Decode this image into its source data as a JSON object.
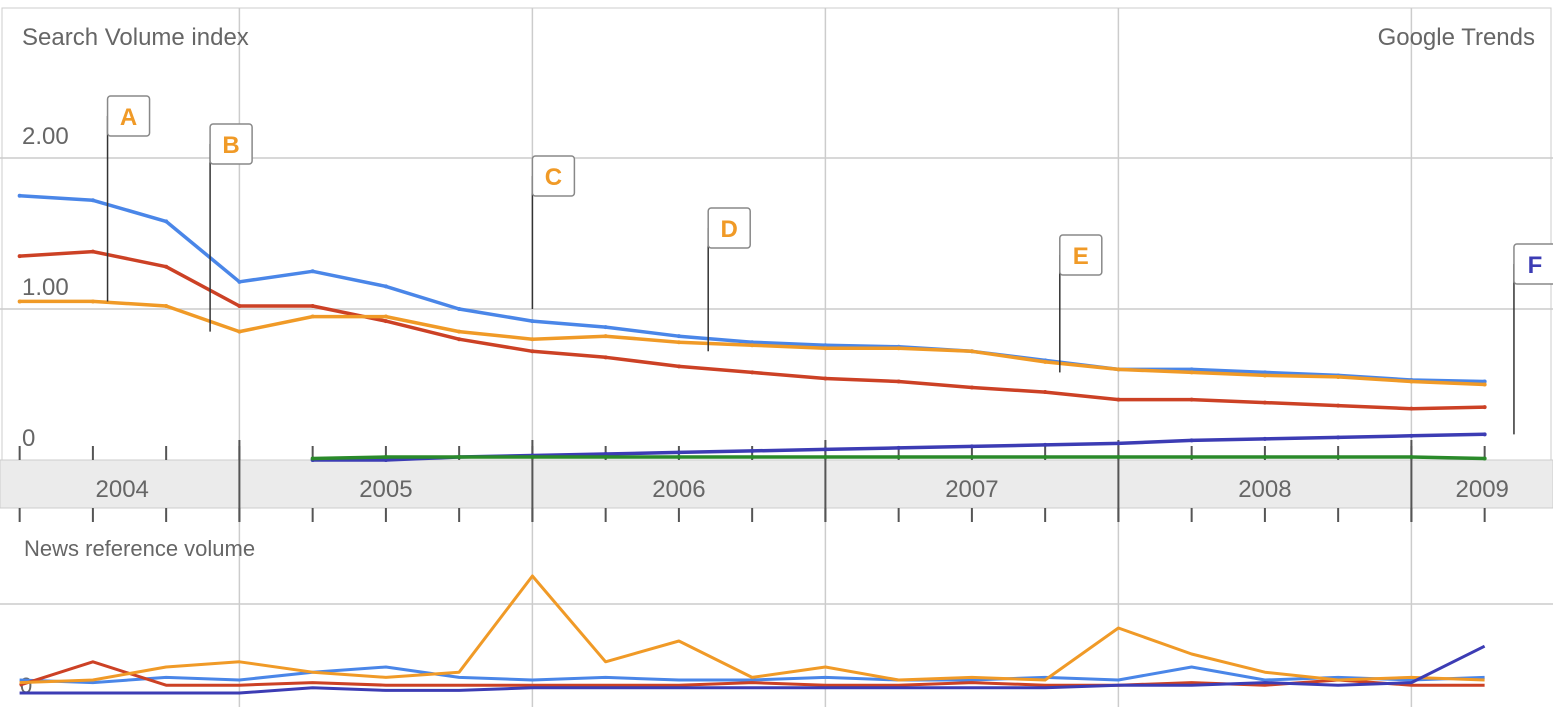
{
  "header": {
    "left_label": "Search Volume index",
    "right_label": "Google Trends"
  },
  "news_panel": {
    "label": "News reference volume",
    "zero_label": "0"
  },
  "colors": {
    "series1": "#4a86e8",
    "series2": "#cc4125",
    "series3": "#f09a27",
    "series4": "#3c3cb4",
    "series5": "#2a8a2a",
    "grid": "#cccccc",
    "band": "#ebebeb",
    "text": "#666666"
  },
  "chart_data": [
    {
      "type": "line",
      "title": "Search Volume index",
      "xlabel": "",
      "ylabel": "",
      "x_tick_labels": [
        "2004",
        "2005",
        "2006",
        "2007",
        "2008",
        "2009"
      ],
      "y_tick_labels": [
        "0",
        "1.00",
        "2.00"
      ],
      "ylim": [
        0,
        2.3
      ],
      "xlim": [
        2003.95,
        2009.25
      ],
      "grid": true,
      "x": [
        2004.0,
        2004.25,
        2004.5,
        2004.75,
        2005.0,
        2005.25,
        2005.5,
        2005.75,
        2006.0,
        2006.25,
        2006.5,
        2006.75,
        2007.0,
        2007.25,
        2007.5,
        2007.75,
        2008.0,
        2008.25,
        2008.5,
        2008.75,
        2009.0,
        2009.25
      ],
      "series": [
        {
          "values": [
            1.75,
            1.72,
            1.58,
            1.18,
            1.25,
            1.15,
            1.0,
            0.92,
            0.88,
            0.82,
            0.78,
            0.76,
            0.75,
            0.72,
            0.66,
            0.6,
            0.6,
            0.58,
            0.56,
            0.53,
            0.52,
            0.5
          ]
        },
        {
          "values": [
            1.35,
            1.38,
            1.28,
            1.02,
            1.02,
            0.92,
            0.8,
            0.72,
            0.68,
            0.62,
            0.58,
            0.54,
            0.52,
            0.48,
            0.45,
            0.4,
            0.4,
            0.38,
            0.36,
            0.34,
            0.35,
            0.34
          ]
        },
        {
          "values": [
            1.05,
            1.05,
            1.02,
            0.85,
            0.95,
            0.95,
            0.85,
            0.8,
            0.82,
            0.78,
            0.76,
            0.74,
            0.74,
            0.72,
            0.65,
            0.6,
            0.58,
            0.56,
            0.55,
            0.52,
            0.5,
            0.48
          ]
        },
        {
          "values": [
            null,
            null,
            null,
            null,
            0.0,
            0.0,
            0.02,
            0.03,
            0.04,
            0.05,
            0.06,
            0.07,
            0.08,
            0.09,
            0.1,
            0.11,
            0.13,
            0.14,
            0.15,
            0.16,
            0.17,
            0.17
          ]
        },
        {
          "values": [
            null,
            null,
            null,
            null,
            0.01,
            0.02,
            0.02,
            0.02,
            0.02,
            0.02,
            0.02,
            0.02,
            0.02,
            0.02,
            0.02,
            0.02,
            0.02,
            0.02,
            0.02,
            0.02,
            0.01,
            0.01
          ]
        }
      ],
      "annotations": [
        {
          "label": "A",
          "x": 2004.3,
          "y": 1.05,
          "color": "#f09a27"
        },
        {
          "label": "B",
          "x": 2004.65,
          "y": 0.85,
          "color": "#f09a27"
        },
        {
          "label": "C",
          "x": 2005.75,
          "y": 1.0,
          "color": "#f09a27"
        },
        {
          "label": "D",
          "x": 2006.35,
          "y": 0.72,
          "color": "#f09a27"
        },
        {
          "label": "E",
          "x": 2007.55,
          "y": 0.58,
          "color": "#f09a27"
        },
        {
          "label": "F",
          "x": 2009.1,
          "y": 0.17,
          "color": "#3c3cb4"
        }
      ]
    },
    {
      "type": "line",
      "title": "News reference volume",
      "y_tick_labels": [
        "0"
      ],
      "grid": true,
      "x": [
        2004.0,
        2004.25,
        2004.5,
        2004.75,
        2005.0,
        2005.25,
        2005.5,
        2005.75,
        2006.0,
        2006.25,
        2006.5,
        2006.75,
        2007.0,
        2007.25,
        2007.5,
        2007.75,
        2008.0,
        2008.25,
        2008.5,
        2008.75,
        2009.0,
        2009.25
      ],
      "series": [
        {
          "values": [
            0.05,
            0.04,
            0.06,
            0.05,
            0.08,
            0.1,
            0.06,
            0.05,
            0.06,
            0.05,
            0.05,
            0.06,
            0.05,
            0.05,
            0.06,
            0.05,
            0.1,
            0.05,
            0.06,
            0.05,
            0.06,
            0.1
          ]
        },
        {
          "values": [
            0.03,
            0.12,
            0.03,
            0.03,
            0.04,
            0.03,
            0.03,
            0.03,
            0.03,
            0.03,
            0.04,
            0.03,
            0.03,
            0.04,
            0.03,
            0.03,
            0.04,
            0.03,
            0.05,
            0.03,
            0.03,
            0.03
          ]
        },
        {
          "values": [
            0.04,
            0.05,
            0.1,
            0.12,
            0.08,
            0.06,
            0.08,
            0.45,
            0.12,
            0.2,
            0.06,
            0.1,
            0.05,
            0.06,
            0.05,
            0.25,
            0.15,
            0.08,
            0.05,
            0.06,
            0.05,
            0.05
          ]
        },
        {
          "values": [
            0.0,
            0.0,
            0.0,
            0.0,
            0.02,
            0.01,
            0.01,
            0.02,
            0.02,
            0.02,
            0.02,
            0.02,
            0.02,
            0.02,
            0.02,
            0.03,
            0.03,
            0.04,
            0.03,
            0.04,
            0.18,
            0.05
          ]
        }
      ]
    }
  ]
}
